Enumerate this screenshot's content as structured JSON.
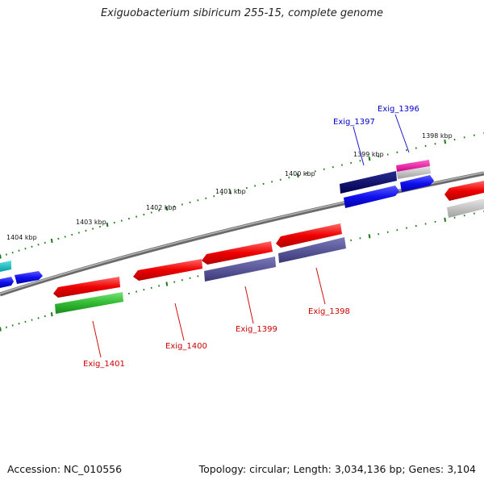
{
  "title": "Exiguobacterium sibiricum 255-15, complete genome",
  "footer": {
    "accession": "Accession: NC_010556",
    "summary": "Topology: circular; Length: 3,034,136 bp; Genes: 3,104"
  },
  "kbp_labels": [
    "1404 kbp",
    "1403 kbp",
    "1402 kbp",
    "1401 kbp",
    "1400 kbp",
    "1399 kbp",
    "1398 kbp"
  ],
  "gene_labels": {
    "exig_1396": "Exig_1396",
    "exig_1397": "Exig_1397",
    "exig_1398": "Exig_1398",
    "exig_1399": "Exig_1399",
    "exig_1400": "Exig_1400",
    "exig_1401": "Exig_1401"
  },
  "colors": {
    "forward_label": "#0000cc",
    "reverse_label": "#cc0000",
    "tick": "#1a7a1a",
    "backbone": "#808080"
  }
}
